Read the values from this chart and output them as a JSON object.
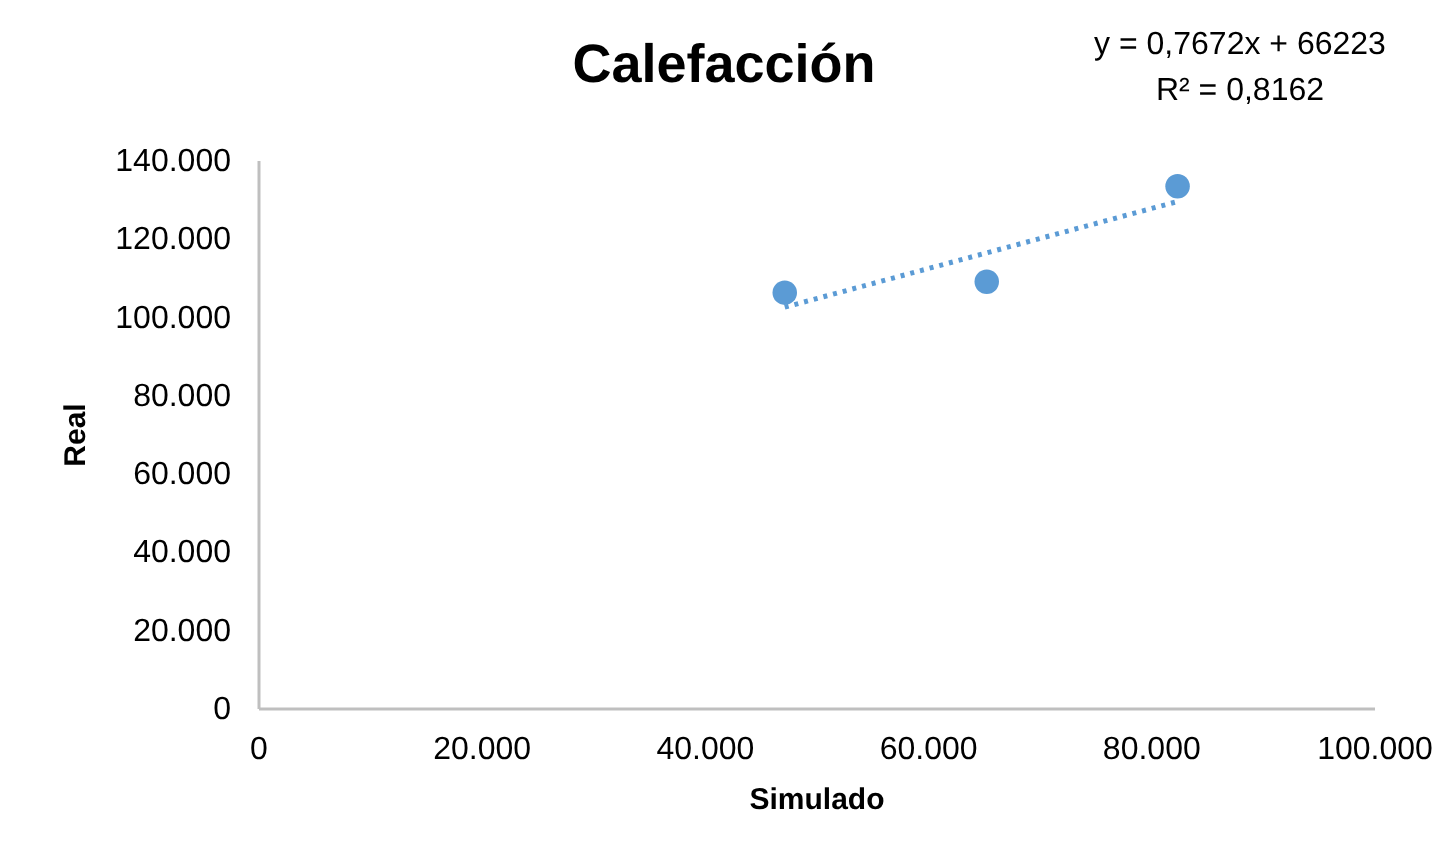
{
  "chart_data": {
    "type": "scatter",
    "title": "Calefacción",
    "xlabel": "Simulado",
    "ylabel": "Real",
    "annotations": [
      "y = 0,7672x + 66223",
      "R² = 0,8162"
    ],
    "grid": false,
    "xlim": [
      0,
      100000
    ],
    "ylim": [
      0,
      140000
    ],
    "xticks": [
      0,
      {
        "value": 20000,
        "label": "20.000"
      },
      {
        "value": 40000,
        "label": "40.000"
      },
      {
        "value": 60000,
        "label": "60.000"
      },
      {
        "value": 80000,
        "label": "80.000"
      },
      {
        "value": 100000,
        "label": "100.000"
      }
    ],
    "yticks": [
      0,
      {
        "value": 20000,
        "label": "20.000"
      },
      {
        "value": 40000,
        "label": "40.000"
      },
      {
        "value": 60000,
        "label": "60.000"
      },
      {
        "value": 80000,
        "label": "80.000"
      },
      {
        "value": 100000,
        "label": "100.000"
      },
      {
        "value": 120000,
        "label": "120.000"
      },
      {
        "value": 140000,
        "label": "140.000"
      }
    ],
    "series": [
      {
        "type": "scatter",
        "marker": "circle",
        "color": "#5b9bd5",
        "x": [
          47200,
          65300,
          82400
        ],
        "values": [
          106100,
          108900,
          133300
        ]
      },
      {
        "type": "line",
        "color": "#5b9bd5",
        "line_style": "dotted",
        "x": [
          47200,
          82400
        ],
        "values": [
          102400,
          129400
        ]
      }
    ]
  }
}
